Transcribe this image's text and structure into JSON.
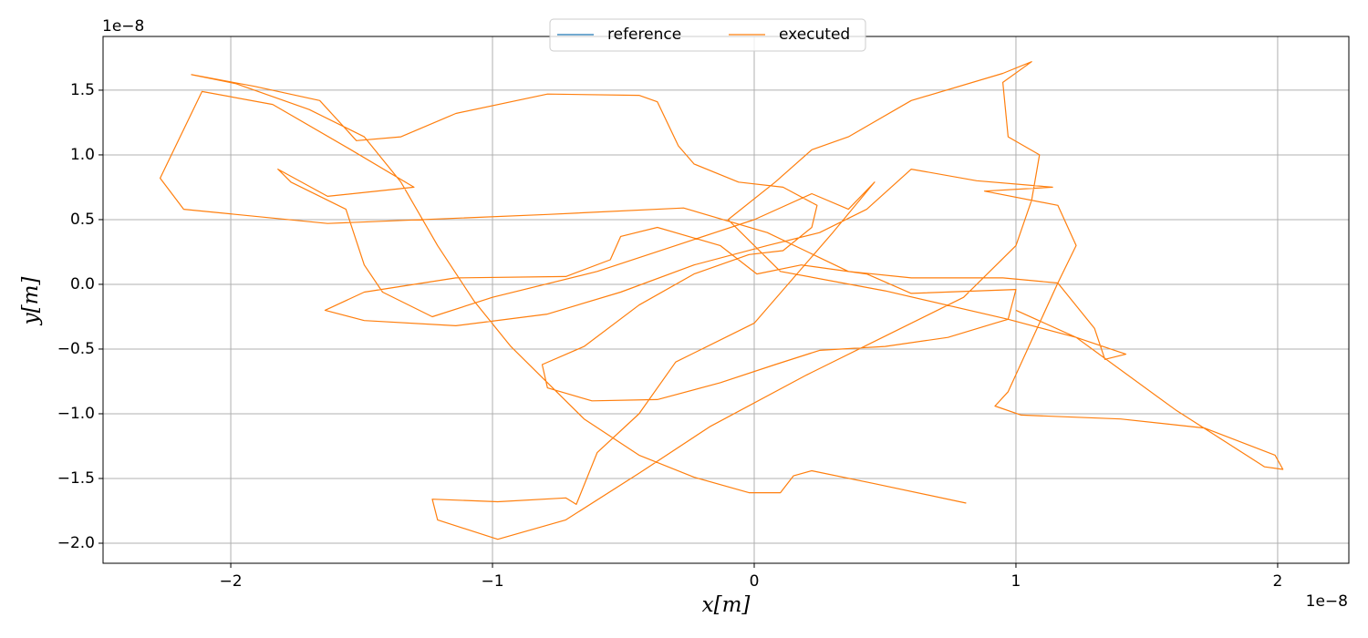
{
  "chart_data": {
    "type": "line",
    "xlabel": "x[m]",
    "ylabel": "y[m]",
    "x_offset": "1e−8",
    "y_offset": "1e−8",
    "xlim": [
      -2.488,
      2.272
    ],
    "ylim": [
      -2.155,
      1.915
    ],
    "xticks": [
      {
        "value": -2,
        "label": "−2"
      },
      {
        "value": -1,
        "label": "−1"
      },
      0,
      1,
      2
    ],
    "yticks": [
      {
        "value": -2.0,
        "label": "−2.0"
      },
      {
        "value": -1.5,
        "label": "−1.5"
      },
      {
        "value": -1.0,
        "label": "−1.0"
      },
      {
        "value": -0.5,
        "label": "−0.5"
      },
      {
        "value": 0.0,
        "label": "0.0"
      },
      {
        "value": 0.5,
        "label": "0.5"
      },
      {
        "value": 1.0,
        "label": "1.0"
      },
      {
        "value": 1.5,
        "label": "1.5"
      }
    ],
    "grid": true,
    "legend": "upper center",
    "series": [
      {
        "name": "reference",
        "color": "#1f77b4"
      },
      {
        "name": "executed",
        "color": "#ff7f0e",
        "x": [
          0.81,
          0.46,
          0.22,
          0.15,
          0.1,
          -0.02,
          -0.23,
          -0.44,
          -0.65,
          -0.79,
          -0.93,
          -1.07,
          -1.21,
          -1.35,
          -1.49,
          -1.7,
          -1.98,
          -2.15,
          -1.91,
          -1.66,
          -1.52,
          -1.35,
          -1.14,
          -0.79,
          -0.44,
          -0.37,
          -0.29,
          -0.23,
          -0.06,
          0.11,
          0.24,
          0.22,
          0.11,
          -0.02,
          -0.23,
          -0.44,
          -0.65,
          -0.81,
          -0.79,
          -0.62,
          -0.37,
          -0.13,
          0.08,
          0.25,
          0.5,
          0.74,
          0.92,
          0.97,
          1.0,
          0.6,
          0.43,
          0.18,
          0.01,
          -0.13,
          -0.37,
          -0.51,
          -0.55,
          -0.72,
          -1.14,
          -1.49,
          -1.64,
          -1.49,
          -1.14,
          -0.79,
          -0.51,
          -0.23,
          0.05,
          0.25,
          0.43,
          0.6,
          0.85,
          1.14,
          0.88,
          1.16,
          1.23,
          1.16,
          0.95,
          0.6,
          0.36,
          0.05,
          -0.27,
          -0.79,
          -1.63,
          -2.18,
          -2.27,
          -2.11,
          -1.84,
          -1.55,
          -1.3,
          -1.63,
          -1.82,
          -1.77,
          -1.56,
          -1.49,
          -1.42,
          -1.23,
          -1.0,
          -0.6,
          -0.3,
          0.0,
          0.22,
          0.36,
          0.46,
          0.3,
          0.0,
          -0.3,
          -0.44,
          -0.6,
          -0.68,
          -0.72,
          -0.98,
          -1.23,
          -1.21,
          -0.98,
          -0.72,
          -0.44,
          -0.17,
          0.2,
          0.5,
          0.8,
          1.0,
          1.06,
          1.09,
          0.97,
          0.95,
          1.06,
          0.95,
          0.6,
          0.36,
          0.22,
          0.08,
          -0.1,
          0.1,
          0.5,
          0.97,
          1.23,
          1.42,
          1.34,
          1.3,
          1.16,
          0.97,
          0.92,
          1.02,
          1.4,
          1.72,
          1.99,
          2.02,
          1.95,
          1.61,
          1.23,
          1.0
        ],
        "y": [
          -1.69,
          -1.54,
          -1.44,
          -1.48,
          -1.61,
          -1.61,
          -1.49,
          -1.32,
          -1.04,
          -0.76,
          -0.48,
          -0.13,
          0.3,
          0.79,
          1.14,
          1.35,
          1.55,
          1.62,
          1.53,
          1.42,
          1.11,
          1.14,
          1.32,
          1.47,
          1.46,
          1.41,
          1.07,
          0.93,
          0.79,
          0.75,
          0.61,
          0.44,
          0.26,
          0.23,
          0.08,
          -0.16,
          -0.48,
          -0.62,
          -0.8,
          -0.9,
          -0.89,
          -0.76,
          -0.62,
          -0.51,
          -0.48,
          -0.41,
          -0.3,
          -0.27,
          -0.04,
          -0.07,
          0.08,
          0.15,
          0.08,
          0.3,
          0.44,
          0.37,
          0.19,
          0.06,
          0.05,
          -0.06,
          -0.2,
          -0.28,
          -0.32,
          -0.23,
          -0.06,
          0.15,
          0.3,
          0.4,
          0.58,
          0.89,
          0.8,
          0.75,
          0.72,
          0.61,
          0.3,
          0.01,
          0.05,
          0.05,
          0.1,
          0.4,
          0.59,
          0.54,
          0.47,
          0.58,
          0.82,
          1.49,
          1.39,
          1.05,
          0.75,
          0.68,
          0.89,
          0.79,
          0.58,
          0.15,
          -0.06,
          -0.25,
          -0.1,
          0.1,
          0.3,
          0.5,
          0.7,
          0.58,
          0.79,
          0.4,
          -0.3,
          -0.6,
          -1.0,
          -1.3,
          -1.7,
          -1.65,
          -1.68,
          -1.66,
          -1.82,
          -1.97,
          -1.82,
          -1.46,
          -1.1,
          -0.7,
          -0.4,
          -0.1,
          0.3,
          0.65,
          1.0,
          1.14,
          1.56,
          1.72,
          1.63,
          1.42,
          1.14,
          1.04,
          0.79,
          0.5,
          0.1,
          -0.05,
          -0.27,
          -0.41,
          -0.54,
          -0.58,
          -0.34,
          0.01,
          -0.83,
          -0.94,
          -1.01,
          -1.04,
          -1.11,
          -1.32,
          -1.43,
          -1.41,
          -0.97,
          -0.41,
          -0.2
        ]
      }
    ]
  }
}
